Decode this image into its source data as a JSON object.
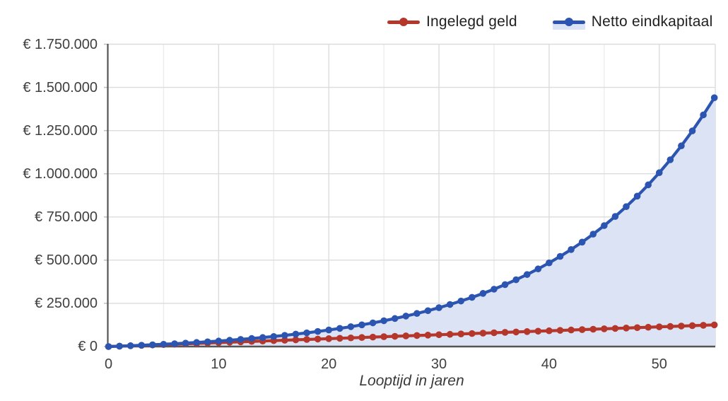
{
  "chart_data": {
    "type": "line",
    "title": "",
    "xlabel": "Looptijd in jaren",
    "ylabel": "",
    "xlim": [
      0,
      55
    ],
    "ylim": [
      0,
      1750000
    ],
    "grid": true,
    "legend_position": "top-right",
    "x": [
      0,
      1,
      2,
      3,
      4,
      5,
      6,
      7,
      8,
      9,
      10,
      11,
      12,
      13,
      14,
      15,
      16,
      17,
      18,
      19,
      20,
      21,
      22,
      23,
      24,
      25,
      26,
      27,
      28,
      29,
      30,
      31,
      32,
      33,
      34,
      35,
      36,
      37,
      38,
      39,
      40,
      41,
      42,
      43,
      44,
      45,
      46,
      47,
      48,
      49,
      50,
      51,
      52,
      53,
      54,
      55
    ],
    "series": [
      {
        "name": "Ingelegd geld",
        "color": "#B5362B",
        "style": "line-markers",
        "values": [
          0,
          2280,
          4560,
          6840,
          9120,
          11400,
          13680,
          15960,
          18240,
          20520,
          22800,
          25080,
          27360,
          29640,
          31920,
          34200,
          36480,
          38760,
          41040,
          43320,
          45600,
          47880,
          50160,
          52440,
          54720,
          57000,
          59280,
          61560,
          63840,
          66120,
          68400,
          70680,
          72960,
          75240,
          77520,
          79800,
          82080,
          84360,
          86640,
          88920,
          91200,
          93480,
          95760,
          98040,
          100320,
          102600,
          104880,
          107160,
          109440,
          111720,
          114000,
          116280,
          118560,
          120840,
          123120,
          125400
        ]
      },
      {
        "name": "Netto eindkapitaal",
        "color": "#2B55B0",
        "style": "area-line-markers",
        "area_fill": "#DCE3F4",
        "values": [
          0,
          2280,
          4725,
          7347,
          10158,
          13173,
          16407,
          19875,
          23594,
          27582,
          31859,
          36445,
          41364,
          46638,
          52295,
          58361,
          64867,
          71843,
          79324,
          87347,
          95951,
          105178,
          115073,
          125684,
          137064,
          149268,
          162355,
          176389,
          191439,
          207579,
          224888,
          243450,
          263355,
          284701,
          307592,
          332140,
          358464,
          386695,
          416970,
          449440,
          484261,
          521601,
          561643,
          604583,
          650634,
          700022,
          752984,
          809779,
          870686,
          936002,
          1006049,
          1081166,
          1161726,
          1248115,
          1340761,
          1440122
        ]
      }
    ],
    "x_ticks": [
      0,
      10,
      20,
      30,
      40,
      50
    ],
    "x_minor_gridlines": [
      5,
      15,
      25,
      35,
      45
    ],
    "y_ticks": [
      {
        "value": 0,
        "label": "€ 0"
      },
      {
        "value": 250000,
        "label": "€ 250.000"
      },
      {
        "value": 500000,
        "label": "€ 500.000"
      },
      {
        "value": 750000,
        "label": "€ 750.000"
      },
      {
        "value": 1000000,
        "label": "€ 1.000.000"
      },
      {
        "value": 1250000,
        "label": "€ 1.250.000"
      },
      {
        "value": 1500000,
        "label": "€ 1.500.000"
      },
      {
        "value": 1750000,
        "label": "€ 1.750.000"
      }
    ],
    "colors": {
      "background": "#ffffff",
      "axis": "#555555",
      "gridline_major": "#DCDCDC",
      "gridline_minor": "#ECECEC",
      "tick": "#BFBFBF",
      "label_text": "#404040",
      "legend_text": "#1F1F1F"
    }
  }
}
